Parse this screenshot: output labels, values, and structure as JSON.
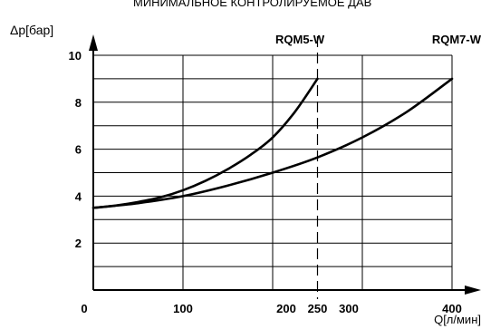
{
  "chart_data": {
    "type": "line",
    "title": "МИНИМАЛЬНОЕ КОНТРОЛИРУЕМОЕ ДАВ",
    "ylabel": "Δp[бар]",
    "xlabel": "Q[л/мин]",
    "xlim": [
      0,
      400
    ],
    "ylim": [
      0,
      10
    ],
    "x_ticks": [
      "0",
      "100",
      "200",
      "250",
      "300",
      "400"
    ],
    "y_ticks": [
      "2",
      "4",
      "6",
      "8",
      "10"
    ],
    "grid": true,
    "marker_line": {
      "x": 250,
      "style": "dashed"
    },
    "series": [
      {
        "name": "RQM5-W",
        "color": "#000000",
        "x": [
          0,
          25,
          50,
          75,
          100,
          125,
          150,
          175,
          200,
          225,
          250
        ],
        "y": [
          3.5,
          3.6,
          3.75,
          3.95,
          4.25,
          4.65,
          5.15,
          5.75,
          6.5,
          7.6,
          9.0
        ]
      },
      {
        "name": "RQM7-W",
        "color": "#000000",
        "x": [
          0,
          50,
          100,
          150,
          200,
          250,
          300,
          350,
          400
        ],
        "y": [
          3.5,
          3.7,
          4.0,
          4.45,
          5.0,
          5.65,
          6.5,
          7.6,
          9.0
        ]
      }
    ]
  }
}
